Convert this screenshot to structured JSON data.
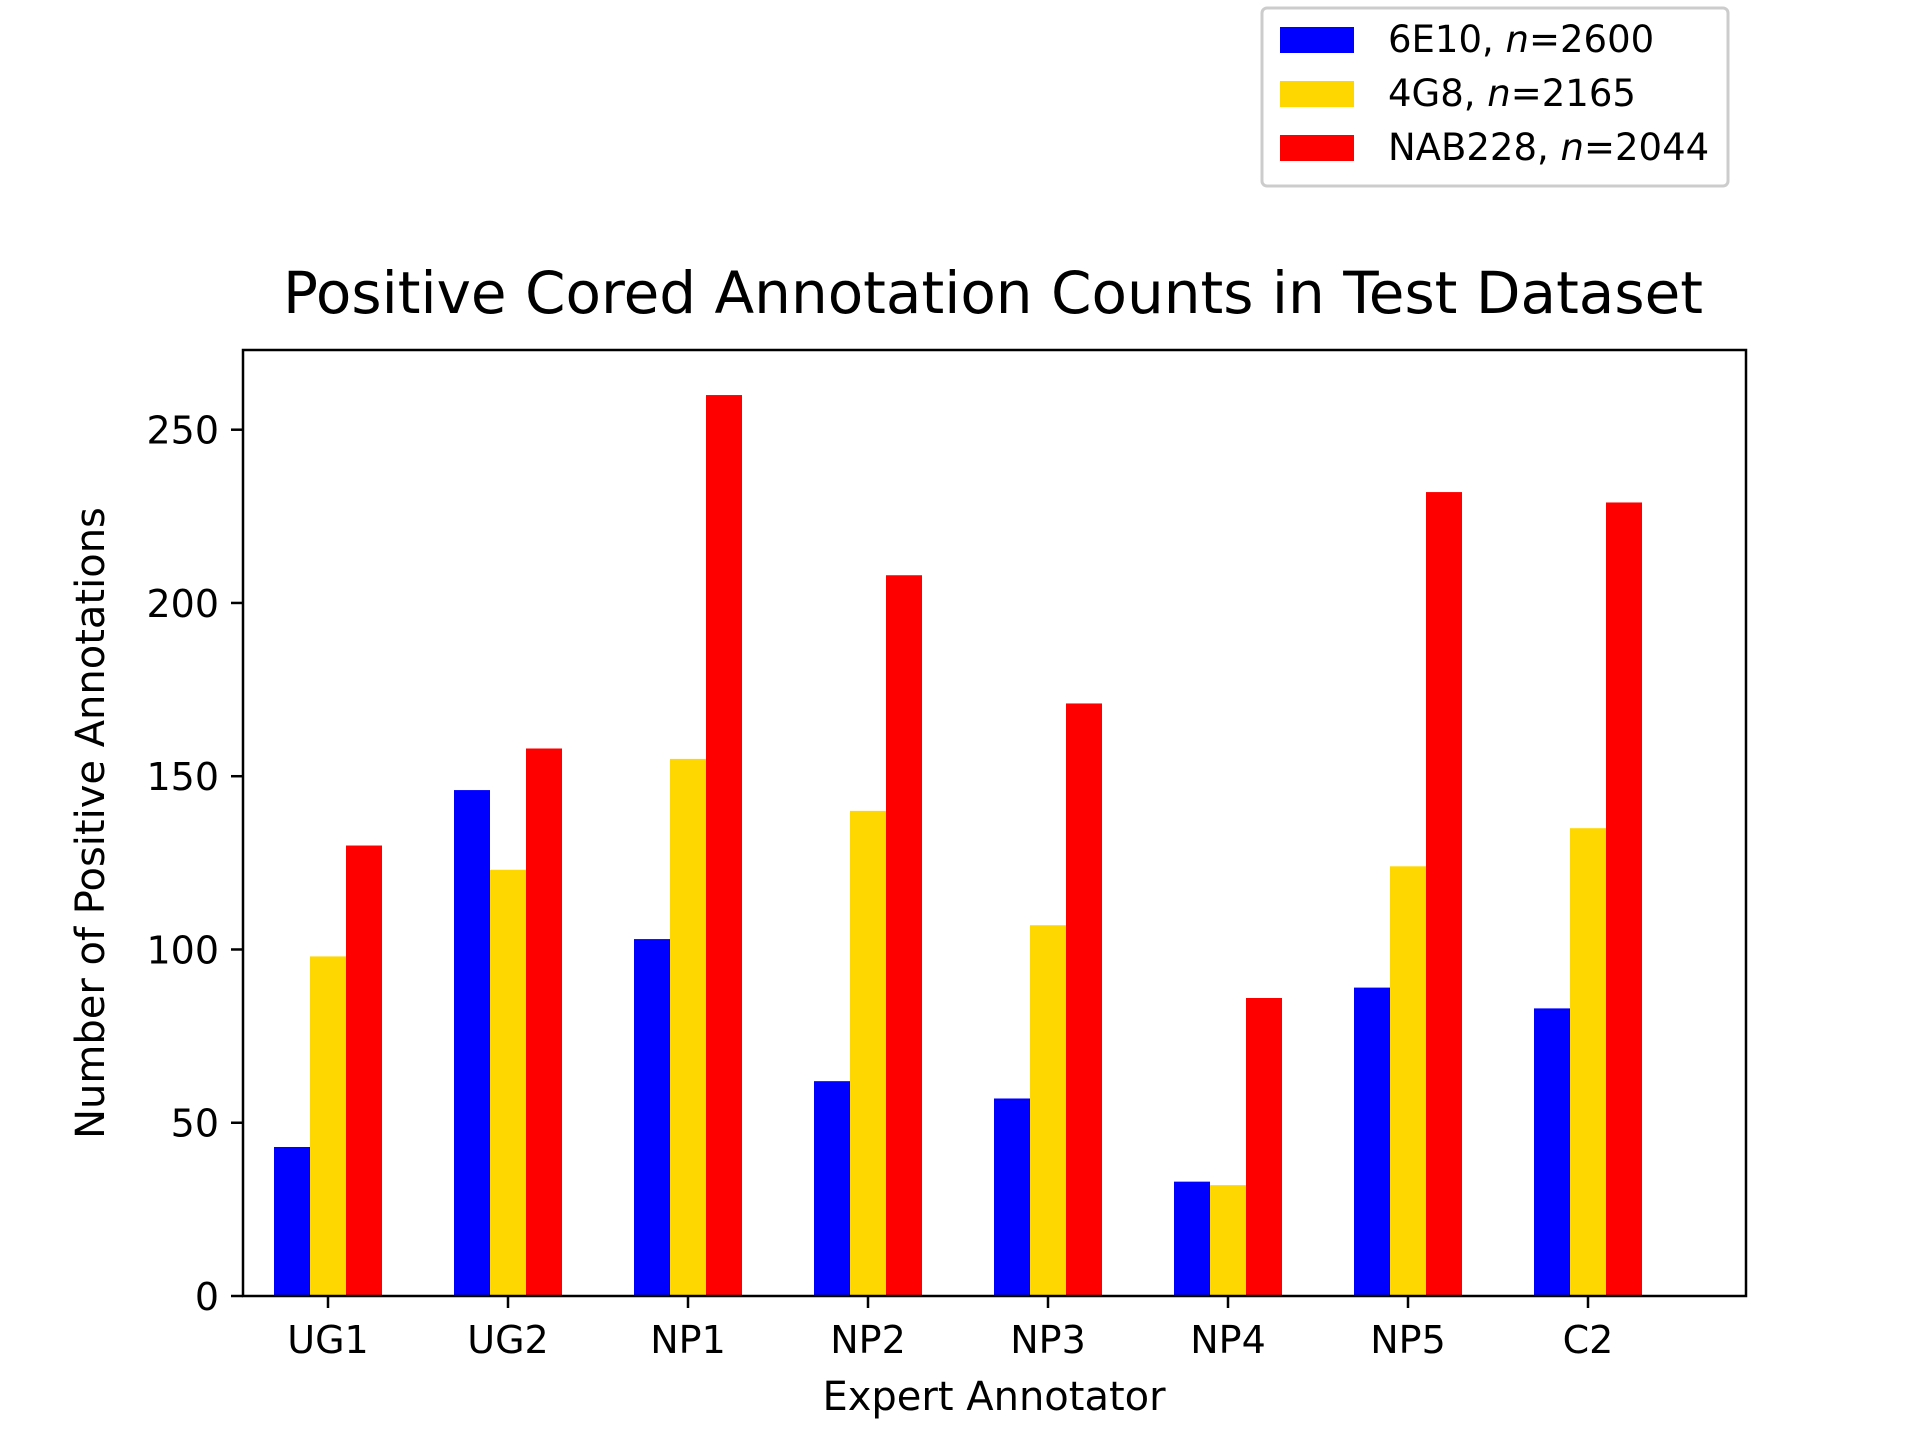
{
  "chart_data": {
    "type": "bar",
    "title": "Positive Cored Annotation Counts in Test Dataset",
    "xlabel": "Expert Annotator",
    "ylabel": "Number of Positive Annotations",
    "categories": [
      "UG1",
      "UG2",
      "NP1",
      "NP2",
      "NP3",
      "NP4",
      "NP5",
      "C2"
    ],
    "ylim": [
      0,
      273
    ],
    "yticks": [
      0,
      50,
      100,
      150,
      200,
      250
    ],
    "grid": false,
    "legend_position": "top-right, above plot",
    "series": [
      {
        "name": "6E10",
        "n_label": "n",
        "n_value": "=2600",
        "color": "#0000ff",
        "values": [
          43,
          146,
          103,
          62,
          57,
          33,
          89,
          83
        ]
      },
      {
        "name": "4G8",
        "n_label": "n",
        "n_value": "=2165",
        "color": "#ffd700",
        "values": [
          98,
          123,
          155,
          140,
          107,
          32,
          124,
          135
        ]
      },
      {
        "name": "NAB228",
        "n_label": "n",
        "n_value": "=2044",
        "color": "#ff0000",
        "values": [
          130,
          158,
          260,
          208,
          171,
          86,
          232,
          229
        ]
      }
    ]
  }
}
